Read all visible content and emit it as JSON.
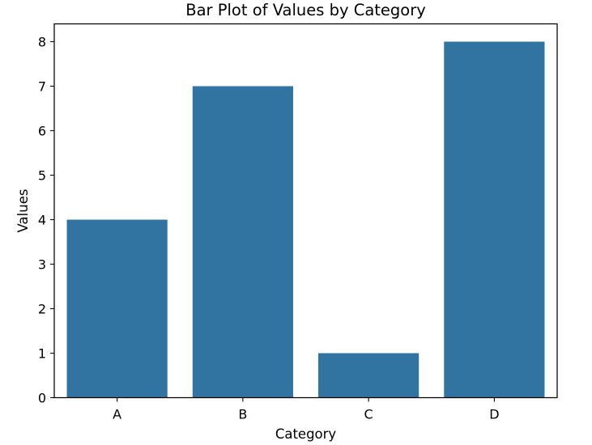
{
  "chart_data": {
    "type": "bar",
    "title": "Bar Plot of Values by Category",
    "xlabel": "Category",
    "ylabel": "Values",
    "categories": [
      "A",
      "B",
      "C",
      "D"
    ],
    "values": [
      4,
      7,
      1,
      8
    ],
    "ylim": [
      0,
      8.4
    ],
    "yticks": [
      0,
      1,
      2,
      3,
      4,
      5,
      6,
      7,
      8
    ],
    "grid": false,
    "bar_color": "#3274a1"
  }
}
